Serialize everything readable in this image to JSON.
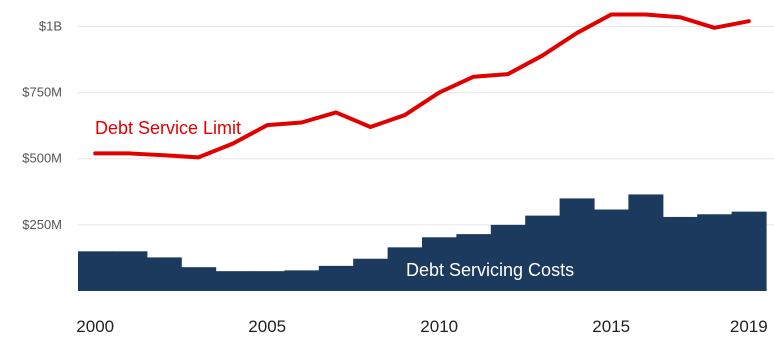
{
  "chart_data": {
    "type": "bar",
    "x": [
      2000,
      2001,
      2002,
      2003,
      2004,
      2005,
      2006,
      2007,
      2008,
      2009,
      2010,
      2011,
      2012,
      2013,
      2014,
      2015,
      2016,
      2017,
      2018,
      2019
    ],
    "series": [
      {
        "name": "Debt Service Limit",
        "kind": "line",
        "color": "#e00000",
        "values": [
          520,
          520,
          513,
          505,
          557,
          627,
          637,
          675,
          620,
          665,
          750,
          810,
          820,
          890,
          975,
          1045,
          1045,
          1035,
          995,
          1020
        ]
      },
      {
        "name": "Debt Servicing Costs",
        "kind": "bar",
        "color": "#1c3a5e",
        "values": [
          150,
          150,
          127,
          90,
          75,
          75,
          78,
          95,
          122,
          165,
          203,
          215,
          250,
          285,
          350,
          308,
          365,
          280,
          290,
          300
        ]
      }
    ],
    "ylim": [
      0,
      1100
    ],
    "ytick_values": [
      250,
      500,
      750,
      1000
    ],
    "ytick_labels": [
      "$250M",
      "$500M",
      "$750M",
      "$1B"
    ],
    "xtick_values": [
      2000,
      2005,
      2010,
      2015,
      2019
    ],
    "xtick_labels": [
      "2000",
      "2005",
      "2010",
      "2015",
      "2019"
    ],
    "annotations": {
      "line_label": "Debt Service Limit",
      "bar_label": "Debt Servicing Costs"
    },
    "grid": true,
    "grid_color": "#e6e6e6"
  }
}
